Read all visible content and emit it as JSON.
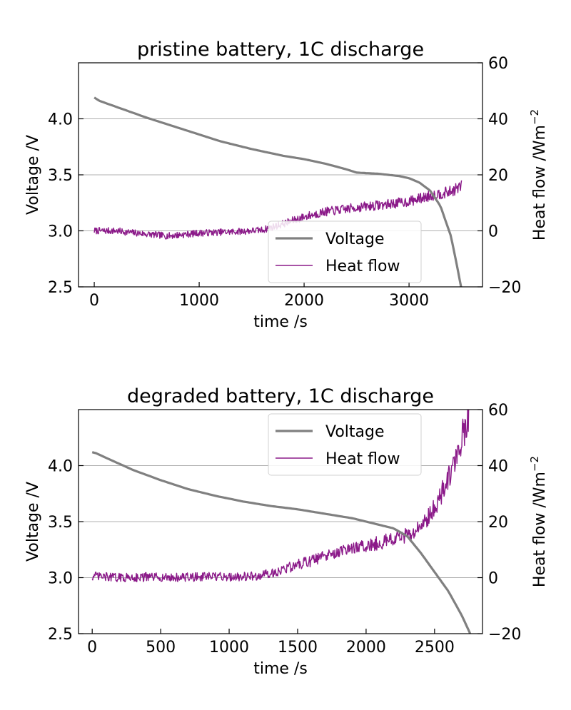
{
  "chart_data": [
    {
      "type": "line",
      "title": "pristine battery, 1C discharge",
      "xlabel": "time /s",
      "ylabel": "Voltage /V",
      "y2label": "Heat flow /Wm",
      "y2label_sup": "−2",
      "xlim": [
        -150,
        3700
      ],
      "ylim": [
        2.5,
        4.5
      ],
      "y2lim": [
        -20,
        60
      ],
      "xticks": [
        0,
        1000,
        2000,
        3000
      ],
      "xtick_labels": [
        "0",
        "1000",
        "2000",
        "3000"
      ],
      "yticks": [
        2.5,
        3.0,
        3.5,
        4.0
      ],
      "ytick_labels": [
        "2.5",
        "3.0",
        "3.5",
        "4.0"
      ],
      "y2ticks": [
        -20,
        0,
        20,
        40,
        60
      ],
      "y2tick_labels": [
        "−20",
        "0",
        "20",
        "40",
        "60"
      ],
      "grid": "horizontal",
      "legend": "lower right",
      "legend_entries": [
        "Voltage",
        "Heat flow"
      ],
      "series": [
        {
          "name": "Voltage",
          "axis": "left",
          "color": "#808080",
          "x": [
            0,
            50,
            200,
            500,
            800,
            1000,
            1200,
            1500,
            1800,
            2000,
            2200,
            2400,
            2500,
            2700,
            2900,
            3000,
            3100,
            3200,
            3300,
            3400,
            3450,
            3500
          ],
          "y": [
            4.19,
            4.16,
            4.11,
            4.01,
            3.92,
            3.86,
            3.8,
            3.73,
            3.67,
            3.64,
            3.6,
            3.55,
            3.52,
            3.51,
            3.49,
            3.47,
            3.43,
            3.36,
            3.22,
            2.95,
            2.72,
            2.48
          ]
        },
        {
          "name": "Heat flow",
          "axis": "right",
          "color": "#8b1a89",
          "noise": 1.2,
          "x": [
            0,
            200,
            400,
            600,
            700,
            800,
            1000,
            1200,
            1400,
            1600,
            1800,
            2000,
            2200,
            2400,
            2600,
            2800,
            3000,
            3200,
            3400,
            3500
          ],
          "y": [
            0.0,
            0.0,
            -0.8,
            -1.5,
            -1.8,
            -1.5,
            -0.8,
            -0.5,
            -0.2,
            0.3,
            2.5,
            5.0,
            6.8,
            7.8,
            8.8,
            9.5,
            10.5,
            12.5,
            14.0,
            16.0
          ]
        }
      ]
    },
    {
      "type": "line",
      "title": "degraded battery, 1C discharge",
      "xlabel": "time /s",
      "ylabel": "Voltage /V",
      "y2label": "Heat flow /Wm",
      "y2label_sup": "−2",
      "xlim": [
        -100,
        2850
      ],
      "ylim": [
        2.5,
        4.5
      ],
      "y2lim": [
        -20,
        60
      ],
      "xticks": [
        0,
        500,
        1000,
        1500,
        2000,
        2500
      ],
      "xtick_labels": [
        "0",
        "500",
        "1000",
        "1500",
        "2000",
        "2500"
      ],
      "yticks": [
        2.5,
        3.0,
        3.5,
        4.0
      ],
      "ytick_labels": [
        "2.5",
        "3.0",
        "3.5",
        "4.0"
      ],
      "y2ticks": [
        -20,
        0,
        20,
        40,
        60
      ],
      "y2tick_labels": [
        "−20",
        "0",
        "20",
        "40",
        "60"
      ],
      "grid": "horizontal",
      "legend": "upper right",
      "legend_entries": [
        "Voltage",
        "Heat flow"
      ],
      "series": [
        {
          "name": "Voltage",
          "axis": "left",
          "color": "#808080",
          "x": [
            0,
            30,
            100,
            300,
            500,
            700,
            900,
            1100,
            1300,
            1500,
            1700,
            1900,
            2100,
            2200,
            2300,
            2400,
            2500,
            2600,
            2700,
            2760
          ],
          "y": [
            4.12,
            4.11,
            4.07,
            3.96,
            3.87,
            3.79,
            3.73,
            3.68,
            3.64,
            3.61,
            3.57,
            3.53,
            3.47,
            3.44,
            3.37,
            3.22,
            3.05,
            2.88,
            2.66,
            2.5
          ]
        },
        {
          "name": "Heat flow",
          "axis": "right",
          "color": "#8b1a89",
          "noise": 1.6,
          "x": [
            0,
            200,
            400,
            600,
            800,
            1000,
            1200,
            1300,
            1400,
            1500,
            1600,
            1800,
            2000,
            2200,
            2300,
            2400,
            2500,
            2600,
            2700,
            2750
          ],
          "y": [
            0.5,
            0.0,
            0.2,
            0.0,
            0.3,
            0.3,
            0.5,
            1.5,
            3.0,
            4.5,
            6.0,
            9.0,
            11.5,
            13.5,
            15.0,
            18.0,
            25.0,
            35.0,
            50.0,
            58.0
          ]
        }
      ]
    }
  ]
}
